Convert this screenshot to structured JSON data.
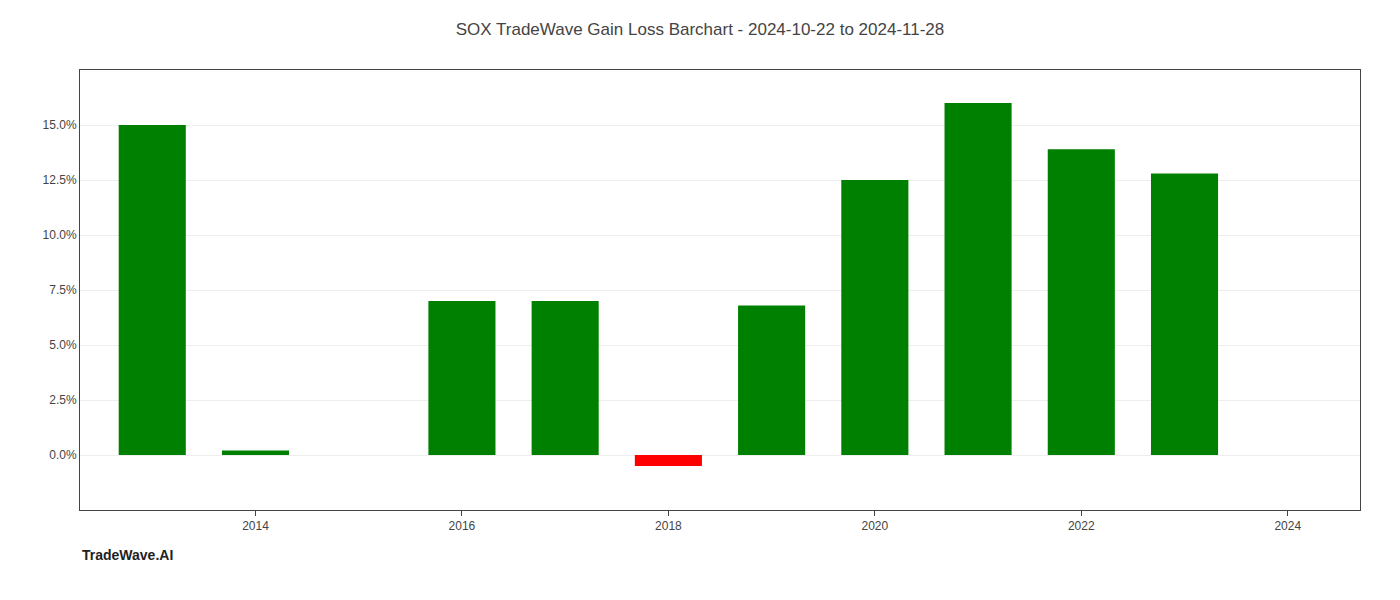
{
  "chart_data": {
    "type": "bar",
    "title": "SOX TradeWave Gain Loss Barchart - 2024-10-22 to 2024-11-28",
    "annotations": [
      {
        "text": "TradeWave.AI"
      }
    ],
    "x": [
      2013,
      2014,
      2015,
      2016,
      2017,
      2018,
      2019,
      2020,
      2021,
      2022,
      2023
    ],
    "values": [
      0.15,
      0.002,
      0.0,
      0.07,
      0.07,
      -0.005,
      0.068,
      0.125,
      0.16,
      0.139,
      0.128
    ],
    "colors": [
      "#008000",
      "#008000",
      "#008000",
      "#008000",
      "#008000",
      "#ff0000",
      "#008000",
      "#008000",
      "#008000",
      "#008000",
      "#008000"
    ],
    "xlim": [
      2012.3,
      2024.7
    ],
    "xticks": [
      2014,
      2016,
      2018,
      2020,
      2022,
      2024
    ],
    "ylim": [
      -0.025,
      0.175
    ],
    "yticks": [
      {
        "value": 0.0,
        "label": "0.0%"
      },
      {
        "value": 0.025,
        "label": "2.5%"
      },
      {
        "value": 0.05,
        "label": "5.0%"
      },
      {
        "value": 0.075,
        "label": "7.5%"
      },
      {
        "value": 0.1,
        "label": "10.0%"
      },
      {
        "value": 0.125,
        "label": "12.5%"
      },
      {
        "value": 0.15,
        "label": "15.0%"
      }
    ],
    "grid": true
  }
}
